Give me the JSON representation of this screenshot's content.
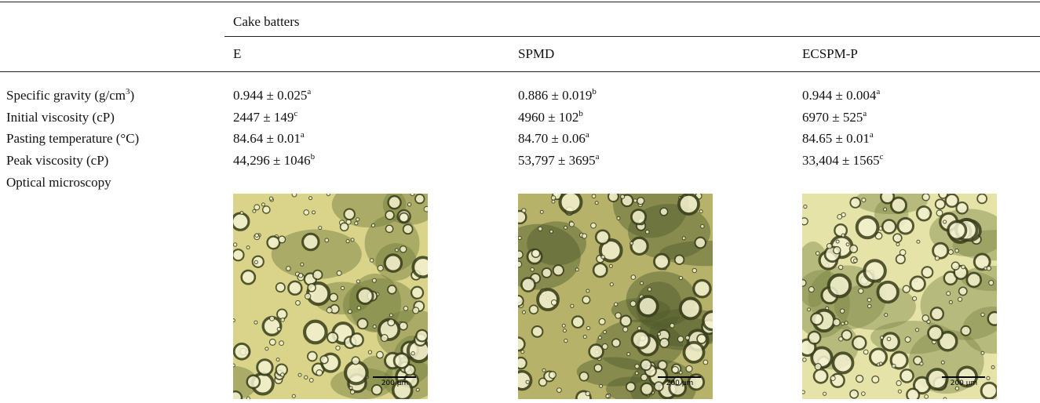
{
  "table": {
    "group_header": "Cake batters",
    "columns": [
      "E",
      "SPMD",
      "ECSPM-P"
    ],
    "rows": [
      {
        "label": {
          "text": "Specific gravity (g/cm",
          "sup": "3",
          "after": ")"
        },
        "cells": [
          {
            "value": "0.944 ± 0.025",
            "sup": "a"
          },
          {
            "value": "0.886 ± 0.019",
            "sup": "b"
          },
          {
            "value": "0.944 ± 0.004",
            "sup": "a"
          }
        ]
      },
      {
        "label": {
          "text": "Initial viscosity (cP)"
        },
        "cells": [
          {
            "value": "2447 ± 149",
            "sup": "c"
          },
          {
            "value": "4960 ± 102",
            "sup": "b"
          },
          {
            "value": "6970 ± 525",
            "sup": "a"
          }
        ]
      },
      {
        "label": {
          "text": "Pasting temperature (°C)"
        },
        "cells": [
          {
            "value": "84.64 ± 0.01",
            "sup": "a"
          },
          {
            "value": "84.70 ± 0.06",
            "sup": "a"
          },
          {
            "value": "84.65 ± 0.01",
            "sup": "a"
          }
        ]
      },
      {
        "label": {
          "text": "Peak viscosity (cP)"
        },
        "cells": [
          {
            "value": "44,296 ± 1046",
            "sup": "b"
          },
          {
            "value": "53,797 ± 3695",
            "sup": "a"
          },
          {
            "value": "33,404 ± 1565",
            "sup": "c"
          }
        ]
      }
    ],
    "image_row": {
      "label": "Optical microscopy",
      "scale_bars": [
        "200 µm",
        "200 µm",
        "200 µm"
      ]
    }
  }
}
